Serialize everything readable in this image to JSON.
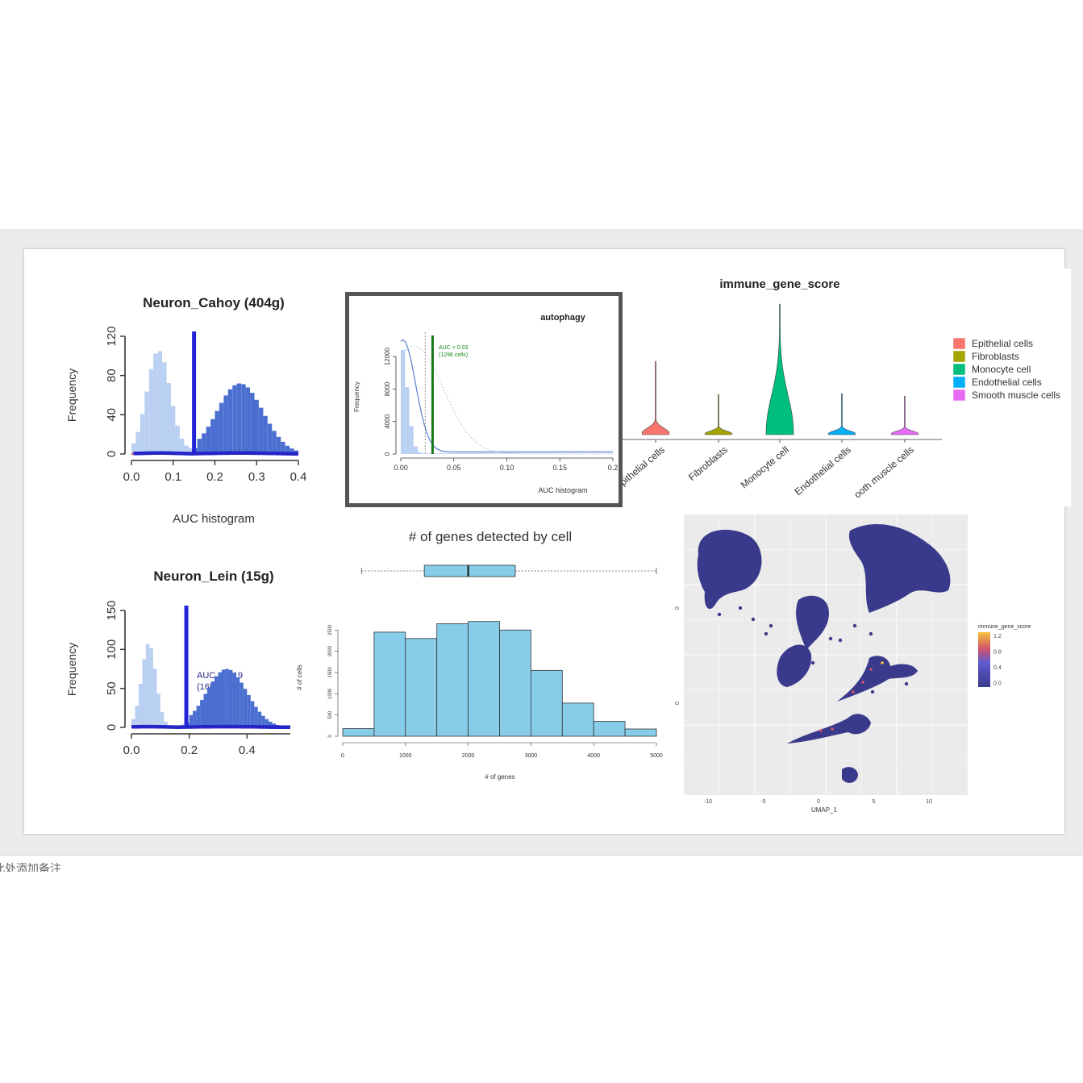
{
  "notes": {
    "placeholder": "此处添加备注"
  },
  "charts": {
    "cahoy": {
      "type": "bar",
      "title": "Neuron_Cahoy (404g)",
      "xlabel": "AUC histogram",
      "ylabel": "Frequency",
      "xticks": [
        "0.0",
        "0.1",
        "0.2",
        "0.3",
        "0.4"
      ],
      "yticks": [
        "0",
        "40",
        "80",
        "120"
      ],
      "xlim": [
        0,
        0.4
      ],
      "ylim": [
        0,
        120
      ],
      "threshold": 0.15
    },
    "lein": {
      "type": "bar",
      "title": "Neuron_Lein (15g)",
      "xlabel": "",
      "ylabel": "Frequency",
      "xticks": [
        "0.0",
        "0.2",
        "0.4"
      ],
      "yticks": [
        "0",
        "50",
        "100",
        "150"
      ],
      "xlim": [
        0,
        0.55
      ],
      "ylim": [
        0,
        150
      ],
      "threshold": 0.19,
      "annotation_1": "AUC > 0.19",
      "annotation_2": "(1680 cells)"
    },
    "autophagy": {
      "type": "bar",
      "title": "autophagy",
      "xlabel": "AUC histogram",
      "ylabel": "Frequency",
      "xticks": [
        "0.00",
        "0.05",
        "0.10",
        "0.15",
        "0.2"
      ],
      "yticks": [
        "0",
        "4000",
        "8000",
        "12000"
      ],
      "xlim": [
        0,
        0.2
      ],
      "ylim": [
        0,
        14000
      ],
      "threshold": 0.03,
      "annotation_1": "AUC > 0.03",
      "annotation_2": "(1296 cells)"
    },
    "violin": {
      "type": "violin",
      "title": "immune_gene_score",
      "categories": [
        "Epithelial cells",
        "Fibroblasts",
        "Monocyte cell",
        "Endothelial cells",
        "Smooth muscle cells"
      ],
      "tick_labels": [
        "pithelial cells",
        "Fibroblasts",
        "Monocyte cell",
        "Endothelial cells",
        "ooth muscle cells"
      ],
      "colors": [
        "#f8766d",
        "#a3a500",
        "#00bf7d",
        "#00b0f6",
        "#e76bf3"
      ],
      "legend": [
        "Epithelial cells",
        "Fibroblasts",
        "Monocyte cell",
        "Endothelial cells",
        "Smooth muscle cells"
      ],
      "legend_position": "right"
    },
    "genes": {
      "type": "bar",
      "title": "# of genes detected by cell",
      "xlabel": "# of genes",
      "ylabel": "# of cells",
      "xticks": [
        "0",
        "1000",
        "2000",
        "3000",
        "4000",
        "5000"
      ],
      "yticks": [
        "0",
        "500",
        "1000",
        "1500",
        "2000",
        "2500"
      ],
      "xlim": [
        0,
        5000
      ],
      "ylim": [
        0,
        2600
      ],
      "bin_width": 500,
      "values": [
        180,
        2450,
        2300,
        2650,
        2700,
        2500,
        1550,
        780,
        350,
        170
      ],
      "boxplot": {
        "min": 300,
        "q1": 1300,
        "median": 2000,
        "q3": 2750,
        "max": 5000
      }
    },
    "umap": {
      "type": "scatter",
      "xlabel": "UMAP_1",
      "xticks": [
        "-10",
        "-5",
        "0",
        "5",
        "10"
      ],
      "yticks": [
        "0",
        "0"
      ],
      "legend_title": "immune_gene_score",
      "legend_ticks": [
        "1.2",
        "0.8",
        "0.4",
        "0.0"
      ],
      "color_low": "#3a3a8c",
      "color_high": "#f5c23b"
    }
  }
}
